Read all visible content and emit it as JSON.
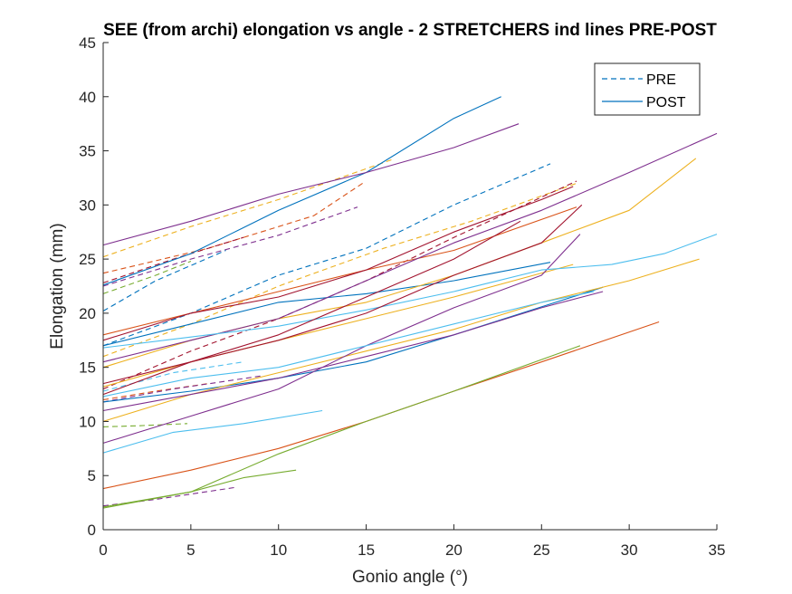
{
  "chart_data": {
    "type": "line",
    "title": "SEE (from archi) elongation vs angle - 2 STRETCHERS ind lines PRE-POST",
    "xlabel": "Gonio angle (°)",
    "ylabel": "Elongation (mm)",
    "xlim": [
      0,
      35
    ],
    "ylim": [
      0,
      45
    ],
    "xticks": [
      0,
      5,
      10,
      15,
      20,
      25,
      30,
      35
    ],
    "yticks": [
      0,
      5,
      10,
      15,
      20,
      25,
      30,
      35,
      40,
      45
    ],
    "grid": false,
    "legend": {
      "placement": "top-right",
      "entries": [
        {
          "label": "PRE",
          "style": "dashed",
          "color": "#0072BD"
        },
        {
          "label": "POST",
          "style": "solid",
          "color": "#0072BD"
        }
      ]
    },
    "series": [
      {
        "group": "PRE",
        "color": "#0072BD",
        "points": [
          [
            0,
            20.2
          ],
          [
            3,
            23
          ],
          [
            7,
            25.8
          ]
        ]
      },
      {
        "group": "PRE",
        "color": "#0072BD",
        "points": [
          [
            0,
            17
          ],
          [
            5,
            20
          ],
          [
            10,
            23.5
          ],
          [
            15,
            26
          ],
          [
            20,
            30
          ],
          [
            25.5,
            33.8
          ]
        ]
      },
      {
        "group": "PRE",
        "color": "#D95319",
        "points": [
          [
            0,
            23.7
          ],
          [
            6,
            26
          ],
          [
            12,
            29
          ],
          [
            14.8,
            32
          ]
        ]
      },
      {
        "group": "PRE",
        "color": "#D95319",
        "points": [
          [
            0,
            12
          ],
          [
            3,
            12.8
          ],
          [
            6,
            13.5
          ]
        ]
      },
      {
        "group": "PRE",
        "color": "#EDB120",
        "points": [
          [
            0,
            25.2
          ],
          [
            5,
            28
          ],
          [
            10,
            30.5
          ],
          [
            16.5,
            34.2
          ]
        ]
      },
      {
        "group": "PRE",
        "color": "#EDB120",
        "points": [
          [
            0,
            16
          ],
          [
            5,
            19
          ],
          [
            10,
            22.5
          ],
          [
            16,
            26
          ],
          [
            21,
            28.5
          ],
          [
            27,
            32
          ]
        ]
      },
      {
        "group": "PRE",
        "color": "#7E2F8E",
        "points": [
          [
            0,
            22.5
          ],
          [
            5,
            25
          ],
          [
            10,
            27.2
          ],
          [
            14.5,
            29.8
          ]
        ]
      },
      {
        "group": "PRE",
        "color": "#7E2F8E",
        "points": [
          [
            0,
            2.2
          ],
          [
            3,
            2.8
          ],
          [
            7.5,
            3.9
          ]
        ]
      },
      {
        "group": "PRE",
        "color": "#7E2F8E",
        "points": [
          [
            0,
            11.8
          ],
          [
            4,
            13
          ],
          [
            9,
            14.2
          ]
        ]
      },
      {
        "group": "PRE",
        "color": "#77AC30",
        "points": [
          [
            0,
            21.8
          ],
          [
            3,
            23.5
          ],
          [
            5,
            24.8
          ]
        ]
      },
      {
        "group": "PRE",
        "color": "#77AC30",
        "points": [
          [
            0,
            9.5
          ],
          [
            2,
            9.6
          ],
          [
            4.8,
            9.8
          ]
        ]
      },
      {
        "group": "PRE",
        "color": "#4DBEEE",
        "points": [
          [
            0,
            12.8
          ],
          [
            4,
            14.5
          ],
          [
            8,
            15.5
          ]
        ]
      },
      {
        "group": "PRE",
        "color": "#A2142F",
        "points": [
          [
            0,
            22.8
          ],
          [
            4,
            25
          ],
          [
            8,
            27
          ]
        ]
      },
      {
        "group": "PRE",
        "color": "#A2142F",
        "points": [
          [
            0,
            13
          ],
          [
            5,
            16.5
          ],
          [
            10,
            19.5
          ],
          [
            15,
            23
          ],
          [
            20,
            27
          ],
          [
            27,
            32.2
          ]
        ]
      },
      {
        "group": "POST",
        "color": "#0072BD",
        "points": [
          [
            0,
            22.6
          ],
          [
            5,
            25.5
          ],
          [
            10,
            29.5
          ],
          [
            15,
            33
          ],
          [
            20,
            38
          ],
          [
            22.7,
            40
          ]
        ]
      },
      {
        "group": "POST",
        "color": "#0072BD",
        "points": [
          [
            0,
            17
          ],
          [
            5,
            19
          ],
          [
            10,
            21
          ],
          [
            15,
            21.8
          ],
          [
            20,
            23
          ],
          [
            25.5,
            24.7
          ]
        ]
      },
      {
        "group": "POST",
        "color": "#0072BD",
        "points": [
          [
            0,
            11.8
          ],
          [
            5,
            12.8
          ],
          [
            10,
            14
          ],
          [
            15,
            15.5
          ],
          [
            20,
            18
          ],
          [
            28.5,
            22.4
          ]
        ]
      },
      {
        "group": "POST",
        "color": "#D95319",
        "points": [
          [
            0,
            3.8
          ],
          [
            5,
            5.5
          ],
          [
            10,
            7.5
          ],
          [
            15,
            10
          ],
          [
            20,
            12.8
          ],
          [
            25,
            15.5
          ],
          [
            31.7,
            19.2
          ]
        ]
      },
      {
        "group": "POST",
        "color": "#D95319",
        "points": [
          [
            0,
            18
          ],
          [
            5,
            20
          ],
          [
            10,
            22
          ],
          [
            15,
            24
          ],
          [
            20,
            25.8
          ],
          [
            27,
            29.8
          ]
        ]
      },
      {
        "group": "POST",
        "color": "#EDB120",
        "points": [
          [
            0,
            10
          ],
          [
            5,
            12.5
          ],
          [
            10,
            14.5
          ],
          [
            15,
            16.5
          ],
          [
            20,
            18.5
          ],
          [
            25,
            21
          ],
          [
            30,
            23
          ],
          [
            34,
            25
          ]
        ]
      },
      {
        "group": "POST",
        "color": "#EDB120",
        "points": [
          [
            0,
            15
          ],
          [
            5,
            17.5
          ],
          [
            10,
            19.5
          ],
          [
            15,
            21
          ],
          [
            20,
            23.5
          ],
          [
            25,
            26.5
          ],
          [
            30,
            29.5
          ],
          [
            33.8,
            34.3
          ]
        ]
      },
      {
        "group": "POST",
        "color": "#EDB120",
        "points": [
          [
            0,
            13.2
          ],
          [
            5,
            15.5
          ],
          [
            10,
            17.5
          ],
          [
            15,
            19.5
          ],
          [
            20,
            21.5
          ],
          [
            26.8,
            24.5
          ]
        ]
      },
      {
        "group": "POST",
        "color": "#7E2F8E",
        "points": [
          [
            0,
            26.3
          ],
          [
            5,
            28.5
          ],
          [
            10,
            31
          ],
          [
            15,
            33
          ],
          [
            20,
            35.3
          ],
          [
            23.7,
            37.5
          ]
        ]
      },
      {
        "group": "POST",
        "color": "#7E2F8E",
        "points": [
          [
            0,
            15.5
          ],
          [
            5,
            17.5
          ],
          [
            10,
            19.5
          ],
          [
            15,
            23
          ],
          [
            20,
            26.5
          ],
          [
            25,
            29.5
          ],
          [
            30,
            33
          ],
          [
            35,
            36.6
          ]
        ]
      },
      {
        "group": "POST",
        "color": "#7E2F8E",
        "points": [
          [
            0,
            11
          ],
          [
            5,
            12.5
          ],
          [
            10,
            14
          ],
          [
            15,
            16
          ],
          [
            20,
            18
          ],
          [
            25,
            20.5
          ],
          [
            28.5,
            22
          ]
        ]
      },
      {
        "group": "POST",
        "color": "#7E2F8E",
        "points": [
          [
            0,
            8
          ],
          [
            5,
            10.5
          ],
          [
            10,
            13
          ],
          [
            15,
            17
          ],
          [
            20,
            20.5
          ],
          [
            25,
            23.5
          ],
          [
            27.2,
            27.3
          ]
        ]
      },
      {
        "group": "POST",
        "color": "#77AC30",
        "points": [
          [
            0,
            2
          ],
          [
            5,
            3.5
          ],
          [
            10,
            7
          ],
          [
            15,
            10
          ],
          [
            20,
            12.8
          ],
          [
            27.2,
            17
          ]
        ]
      },
      {
        "group": "POST",
        "color": "#77AC30",
        "points": [
          [
            0,
            2.1
          ],
          [
            5,
            3.5
          ],
          [
            8,
            4.8
          ],
          [
            11,
            5.5
          ]
        ]
      },
      {
        "group": "POST",
        "color": "#4DBEEE",
        "points": [
          [
            0,
            7.1
          ],
          [
            4,
            9
          ],
          [
            8,
            9.8
          ],
          [
            12.5,
            11
          ]
        ]
      },
      {
        "group": "POST",
        "color": "#4DBEEE",
        "points": [
          [
            0,
            12.3
          ],
          [
            5,
            14
          ],
          [
            10,
            15
          ],
          [
            15,
            17
          ],
          [
            20,
            19
          ],
          [
            25,
            21
          ],
          [
            28,
            22
          ]
        ]
      },
      {
        "group": "POST",
        "color": "#4DBEEE",
        "points": [
          [
            0,
            16.8
          ],
          [
            5,
            17.8
          ],
          [
            10,
            18.8
          ],
          [
            15,
            20.3
          ],
          [
            20,
            22
          ],
          [
            25,
            24
          ],
          [
            29,
            24.5
          ],
          [
            32,
            25.5
          ],
          [
            35,
            27.3
          ]
        ]
      },
      {
        "group": "POST",
        "color": "#A2142F",
        "points": [
          [
            0,
            17.5
          ],
          [
            5,
            20
          ],
          [
            10,
            21.5
          ],
          [
            15,
            24
          ],
          [
            20,
            27.5
          ],
          [
            25,
            30.5
          ],
          [
            26.8,
            31.7
          ]
        ]
      },
      {
        "group": "POST",
        "color": "#A2142F",
        "points": [
          [
            0,
            12.5
          ],
          [
            5,
            15.5
          ],
          [
            10,
            18
          ],
          [
            15,
            21.5
          ],
          [
            20,
            25
          ],
          [
            23.8,
            28.5
          ]
        ]
      },
      {
        "group": "POST",
        "color": "#A2142F",
        "points": [
          [
            0,
            13.5
          ],
          [
            5,
            15.5
          ],
          [
            10,
            17.5
          ],
          [
            15,
            20
          ],
          [
            20,
            23.5
          ],
          [
            25,
            26.5
          ],
          [
            27.3,
            30
          ]
        ]
      }
    ]
  }
}
